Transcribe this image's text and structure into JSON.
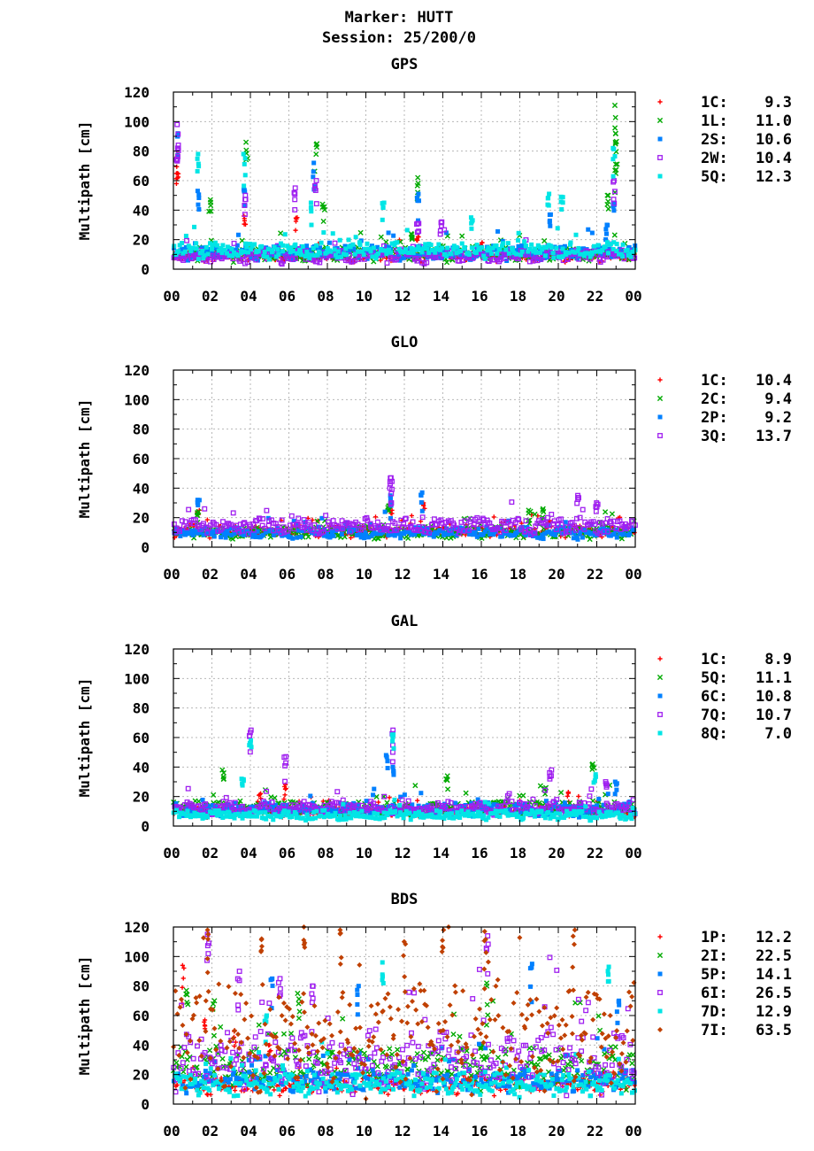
{
  "header": {
    "marker": "Marker: HUTT",
    "session": "Session: 25/200/0"
  },
  "chart_data": [
    {
      "type": "scatter",
      "title": "GPS",
      "ylabel": "Multipath [cm]",
      "xlabel": "",
      "xlim": [
        0,
        24
      ],
      "ylim": [
        0,
        120
      ],
      "x_ticks": [
        "00",
        "02",
        "04",
        "06",
        "08",
        "10",
        "12",
        "14",
        "16",
        "18",
        "20",
        "22",
        "00"
      ],
      "y_ticks": [
        0,
        20,
        40,
        60,
        80,
        100,
        120
      ],
      "grid": true,
      "legend_position": "right",
      "series": [
        {
          "code": "1C:",
          "value": "9.3",
          "color": "#ff0000",
          "marker": "plus",
          "base": 7,
          "spread": 5,
          "peaks": [
            [
              0.2,
              78
            ],
            [
              0.2,
              65
            ],
            [
              3.7,
              36
            ],
            [
              6.4,
              35
            ],
            [
              12.7,
              22
            ],
            [
              16,
              18
            ]
          ]
        },
        {
          "code": "1L:",
          "value": "11.0",
          "color": "#00aa00",
          "marker": "cross",
          "base": 8,
          "spread": 6,
          "peaks": [
            [
              1.9,
              47
            ],
            [
              3.8,
              86
            ],
            [
              7.4,
              85
            ],
            [
              7.8,
              44
            ],
            [
              12.7,
              62
            ],
            [
              12.4,
              24
            ],
            [
              22.6,
              50
            ],
            [
              23,
              111
            ],
            [
              23,
              92
            ],
            [
              23,
              71
            ]
          ]
        },
        {
          "code": "2S:",
          "value": "10.6",
          "color": "#0080ff",
          "marker": "square",
          "base": 9,
          "spread": 6,
          "peaks": [
            [
              0.2,
              92
            ],
            [
              1.3,
              53
            ],
            [
              3.7,
              54
            ],
            [
              7.3,
              72
            ],
            [
              12.7,
              51
            ],
            [
              19.6,
              37
            ],
            [
              22.5,
              30
            ],
            [
              22.9,
              45
            ]
          ]
        },
        {
          "code": "2W:",
          "value": "10.4",
          "color": "#a020f0",
          "marker": "opensquare",
          "base": 7,
          "spread": 6,
          "peaks": [
            [
              0.2,
              98
            ],
            [
              0.2,
              82
            ],
            [
              3.7,
              50
            ],
            [
              6.3,
              55
            ],
            [
              7.4,
              60
            ],
            [
              12.7,
              31
            ],
            [
              13.9,
              32
            ],
            [
              22.9,
              60
            ]
          ]
        },
        {
          "code": "5Q:",
          "value": "12.3",
          "color": "#00e5e5",
          "marker": "square",
          "base": 10,
          "spread": 7,
          "peaks": [
            [
              1.3,
              78
            ],
            [
              3.7,
              78
            ],
            [
              7.2,
              45
            ],
            [
              10.9,
              45
            ],
            [
              15.5,
              35
            ],
            [
              19.5,
              51
            ],
            [
              20.2,
              49
            ],
            [
              22.9,
              82
            ]
          ]
        }
      ]
    },
    {
      "type": "scatter",
      "title": "GLO",
      "ylabel": "Multipath [cm]",
      "xlabel": "",
      "xlim": [
        0,
        24
      ],
      "ylim": [
        0,
        120
      ],
      "x_ticks": [
        "00",
        "02",
        "04",
        "06",
        "08",
        "10",
        "12",
        "14",
        "16",
        "18",
        "20",
        "22",
        "00"
      ],
      "y_ticks": [
        0,
        20,
        40,
        60,
        80,
        100,
        120
      ],
      "grid": true,
      "legend_position": "right",
      "series": [
        {
          "code": "1C:",
          "value": "10.4",
          "color": "#ff0000",
          "marker": "plus",
          "base": 9,
          "spread": 5,
          "peaks": [
            [
              1.3,
              25
            ],
            [
              11.3,
              25
            ],
            [
              13,
              30
            ],
            [
              19.5,
              18
            ]
          ]
        },
        {
          "code": "2C:",
          "value": "9.4",
          "color": "#00aa00",
          "marker": "cross",
          "base": 8,
          "spread": 5,
          "peaks": [
            [
              1.3,
              24
            ],
            [
              11.2,
              28
            ],
            [
              18.5,
              25
            ],
            [
              19.2,
              26
            ]
          ]
        },
        {
          "code": "2P:",
          "value": "9.2",
          "color": "#0080ff",
          "marker": "square",
          "base": 8,
          "spread": 5,
          "peaks": [
            [
              1.3,
              32
            ],
            [
              12.9,
              37
            ],
            [
              11.3,
              35
            ]
          ]
        },
        {
          "code": "3Q:",
          "value": "13.7",
          "color": "#a020f0",
          "marker": "opensquare",
          "base": 12,
          "spread": 7,
          "peaks": [
            [
              11.3,
              47
            ],
            [
              11.3,
              40
            ],
            [
              21,
              35
            ],
            [
              22,
              30
            ]
          ]
        }
      ]
    },
    {
      "type": "scatter",
      "title": "GAL",
      "ylabel": "Multipath [cm]",
      "xlabel": "",
      "xlim": [
        0,
        24
      ],
      "ylim": [
        0,
        120
      ],
      "x_ticks": [
        "00",
        "02",
        "04",
        "06",
        "08",
        "10",
        "12",
        "14",
        "16",
        "18",
        "20",
        "22",
        "00"
      ],
      "y_ticks": [
        0,
        20,
        40,
        60,
        80,
        100,
        120
      ],
      "grid": true,
      "legend_position": "right",
      "series": [
        {
          "code": "1C:",
          "value": "8.9",
          "color": "#ff0000",
          "marker": "plus",
          "base": 8,
          "spread": 5,
          "peaks": [
            [
              5.8,
              28
            ],
            [
              4.5,
              22
            ],
            [
              12.2,
              14
            ],
            [
              20.5,
              23
            ]
          ]
        },
        {
          "code": "5Q:",
          "value": "11.1",
          "color": "#00aa00",
          "marker": "cross",
          "base": 10,
          "spread": 6,
          "peaks": [
            [
              2.6,
              38
            ],
            [
              14.2,
              34
            ],
            [
              19.3,
              26
            ],
            [
              21.8,
              42
            ]
          ]
        },
        {
          "code": "6C:",
          "value": "10.8",
          "color": "#0080ff",
          "marker": "square",
          "base": 9,
          "spread": 6,
          "peaks": [
            [
              11.1,
              48
            ],
            [
              11.4,
              40
            ],
            [
              23,
              30
            ]
          ]
        },
        {
          "code": "7Q:",
          "value": "10.7",
          "color": "#a020f0",
          "marker": "opensquare",
          "base": 10,
          "spread": 6,
          "peaks": [
            [
              4,
              65
            ],
            [
              5.8,
              47
            ],
            [
              11.4,
              65
            ],
            [
              19.6,
              38
            ],
            [
              22.5,
              30
            ]
          ]
        },
        {
          "code": "8Q:",
          "value": "7.0",
          "color": "#00e5e5",
          "marker": "square",
          "base": 6,
          "spread": 4,
          "peaks": [
            [
              4,
              58
            ],
            [
              11.4,
              62
            ],
            [
              3.6,
              32
            ],
            [
              21.9,
              35
            ]
          ]
        }
      ]
    },
    {
      "type": "scatter",
      "title": "BDS",
      "ylabel": "Multipath [cm]",
      "xlabel": "",
      "xlim": [
        0,
        24
      ],
      "ylim": [
        0,
        120
      ],
      "x_ticks": [
        "00",
        "02",
        "04",
        "06",
        "08",
        "10",
        "12",
        "14",
        "16",
        "18",
        "20",
        "22",
        "00"
      ],
      "y_ticks": [
        0,
        20,
        40,
        60,
        80,
        100,
        120
      ],
      "grid": true,
      "legend_position": "right",
      "series": [
        {
          "code": "1P:",
          "value": "12.2",
          "color": "#ff0000",
          "marker": "plus",
          "base": 10,
          "spread": 8,
          "peaks": [
            [
              0.5,
              94
            ],
            [
              1.6,
              57
            ],
            [
              3.2,
              50
            ],
            [
              5,
              40
            ]
          ]
        },
        {
          "code": "2I:",
          "value": "22.5",
          "color": "#00aa00",
          "marker": "cross",
          "base": 18,
          "spread": 18,
          "peaks": [
            [
              0.7,
              77
            ],
            [
              2.1,
              70
            ],
            [
              6.5,
              75
            ],
            [
              16.3,
              82
            ],
            [
              16,
              40
            ]
          ]
        },
        {
          "code": "5P:",
          "value": "14.1",
          "color": "#0080ff",
          "marker": "square",
          "base": 12,
          "spread": 10,
          "peaks": [
            [
              5.1,
              85
            ],
            [
              18.6,
              95
            ],
            [
              9.6,
              80
            ],
            [
              23.1,
              70
            ]
          ]
        },
        {
          "code": "6I:",
          "value": "26.5",
          "color": "#a020f0",
          "marker": "opensquare",
          "base": 20,
          "spread": 25,
          "peaks": [
            [
              1.8,
              115
            ],
            [
              3.4,
              90
            ],
            [
              5.5,
              85
            ],
            [
              16.3,
              114
            ],
            [
              7.2,
              80
            ]
          ]
        },
        {
          "code": "7D:",
          "value": "12.9",
          "color": "#00e5e5",
          "marker": "square",
          "base": 10,
          "spread": 10,
          "peaks": [
            [
              10.9,
              96
            ],
            [
              22.6,
              93
            ],
            [
              4.8,
              60
            ]
          ]
        },
        {
          "code": "7I:",
          "value": "63.5",
          "color": "#c04000",
          "marker": "diamond",
          "base": 30,
          "spread": 45,
          "peaks": [
            [
              1.8,
              118
            ],
            [
              4.6,
              112
            ],
            [
              6.8,
              120
            ],
            [
              8.7,
              118
            ],
            [
              14,
              118
            ],
            [
              16.2,
              117
            ],
            [
              20.8,
              118
            ],
            [
              12,
              110
            ]
          ]
        }
      ]
    }
  ]
}
